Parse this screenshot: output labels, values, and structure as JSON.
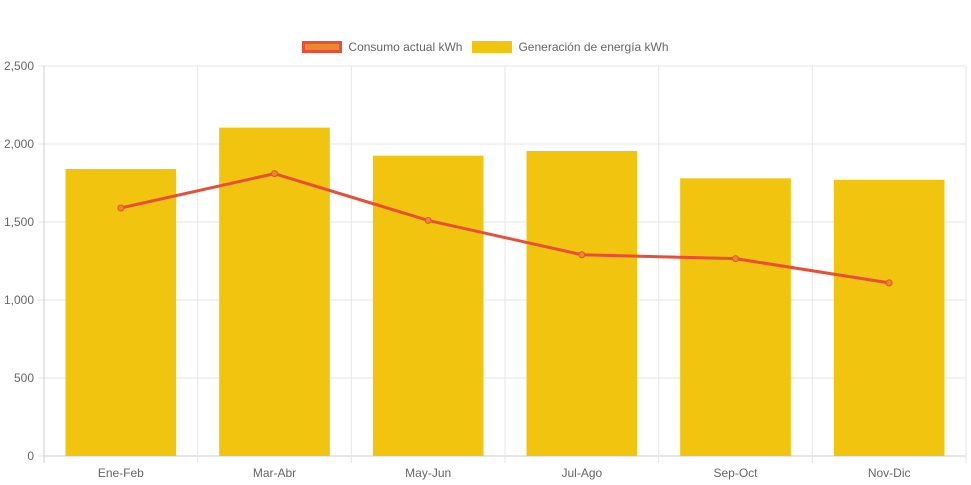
{
  "chart_data": {
    "type": "bar",
    "categories": [
      "Ene-Feb",
      "Mar-Abr",
      "May-Jun",
      "Jul-Ago",
      "Sep-Oct",
      "Nov-Dic"
    ],
    "series": [
      {
        "name": "Consumo actual kWh",
        "type": "line",
        "color": "#e94e37",
        "point_color": "#e88a2b",
        "values": [
          1590,
          1810,
          1510,
          1290,
          1265,
          1110
        ]
      },
      {
        "name": "Generación de energía kWh",
        "type": "bar",
        "color": "#f1c40f",
        "values": [
          1840,
          2105,
          1925,
          1955,
          1780,
          1770
        ]
      }
    ],
    "ylim": [
      0,
      2500
    ],
    "yticks": [
      0,
      500,
      1000,
      1500,
      2000,
      2500
    ],
    "ytick_labels": [
      "0",
      "500",
      "1,000",
      "1,500",
      "2,000",
      "2,500"
    ],
    "grid": true,
    "legend_position": "top-center"
  }
}
